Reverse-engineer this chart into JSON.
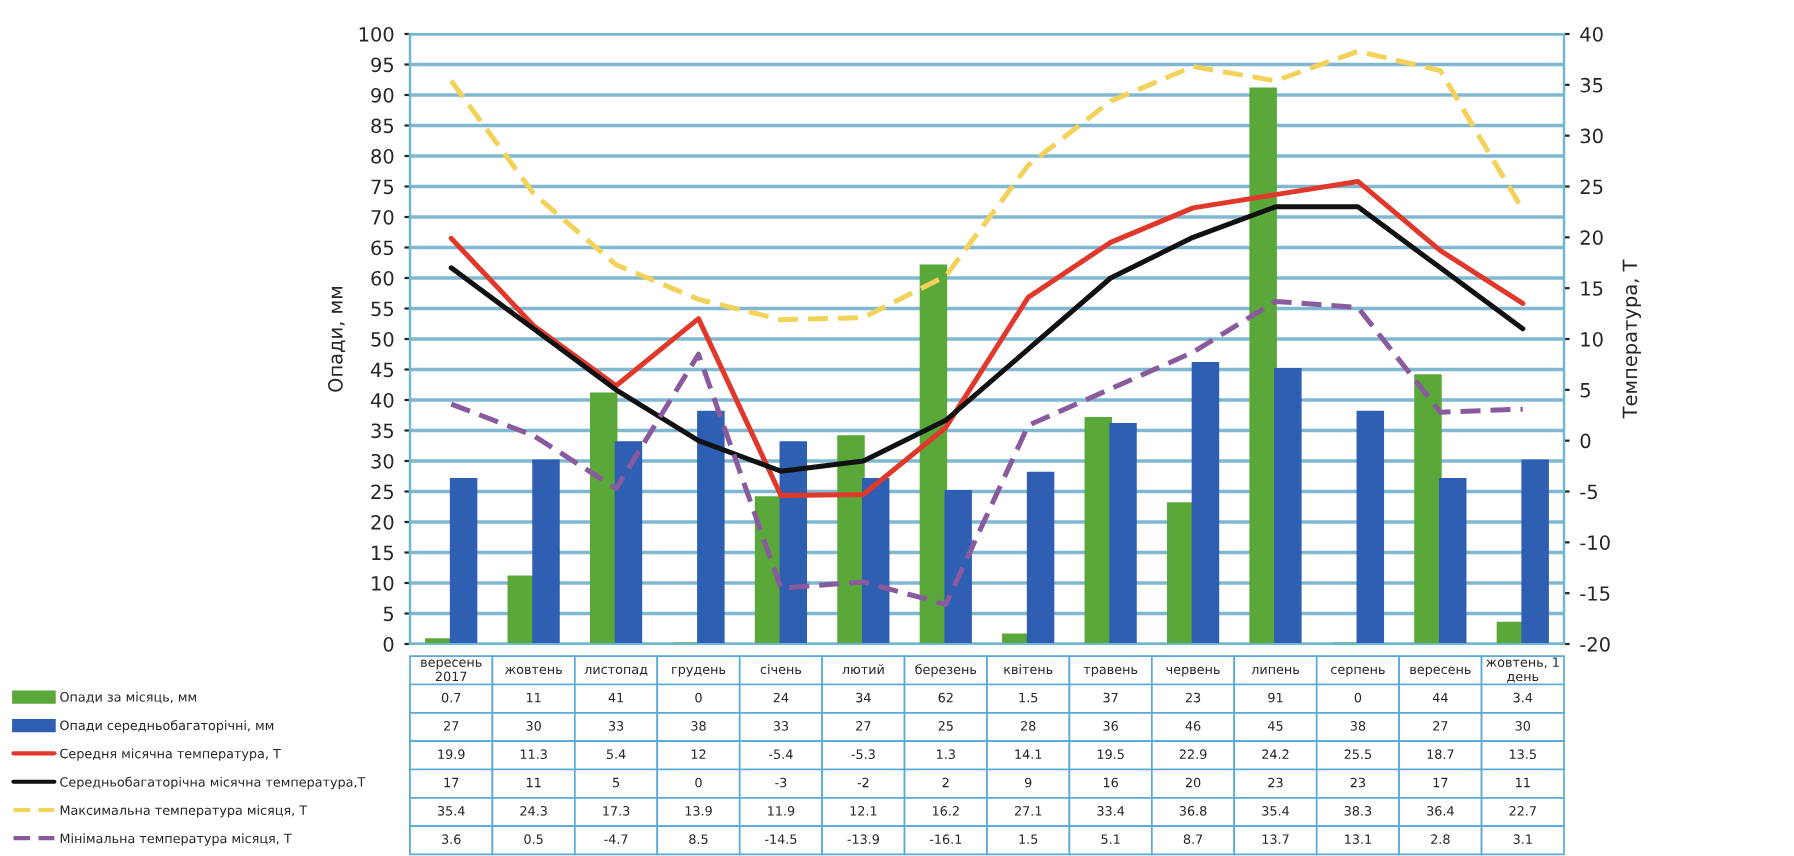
{
  "chart_data": {
    "type": "bar",
    "categories": [
      "вересень 2017",
      "жовтень",
      "листопад",
      "грудень",
      "січень",
      "лютий",
      "березень",
      "квітень",
      "травень",
      "червень",
      "липень",
      "серпень",
      "вересень",
      "жовтень, 1 день"
    ],
    "series": [
      {
        "name": "Опади за місяць, мм",
        "color": "#5aa83a",
        "values": [
          0.7,
          11,
          41,
          0,
          24,
          34,
          62,
          1.5,
          37,
          23,
          91,
          0,
          44,
          3.4
        ]
      },
      {
        "name": "Опади середньобагаторічні, мм",
        "color": "#2f5fb3",
        "values": [
          27,
          30,
          33,
          38,
          33,
          27,
          25,
          28,
          36,
          46,
          45,
          38,
          27,
          30
        ]
      },
      {
        "name": "Середня місячна температура, T",
        "type": "line",
        "axis": "y2",
        "color": "#e0392b",
        "line_style": "solid",
        "values": [
          19.9,
          11.3,
          5.4,
          12,
          -5.4,
          -5.3,
          1.3,
          14.1,
          19.5,
          22.9,
          24.2,
          25.5,
          18.7,
          13.5
        ]
      },
      {
        "name": "Середньобагаторічна місячна температура,T",
        "type": "line",
        "axis": "y2",
        "color": "#111111",
        "line_style": "solid",
        "values": [
          17,
          11,
          5,
          0,
          -3,
          -2,
          2,
          9,
          16,
          20,
          23,
          23,
          17,
          11
        ]
      },
      {
        "name": "Максимальна температура місяця, T",
        "type": "line",
        "axis": "y2",
        "color": "#f2d25a",
        "line_style": "dashed",
        "values": [
          35.4,
          24.3,
          17.3,
          13.9,
          11.9,
          12.1,
          16.2,
          27.1,
          33.4,
          36.8,
          35.4,
          38.3,
          36.4,
          22.7
        ]
      },
      {
        "name": "Мінімальна температура місяця, T",
        "type": "line",
        "axis": "y2",
        "color": "#8a5a9e",
        "line_style": "dashed",
        "values": [
          3.6,
          0.5,
          -4.7,
          8.5,
          -14.5,
          -13.9,
          -16.1,
          1.5,
          5.1,
          8.7,
          13.7,
          13.1,
          2.8,
          3.1
        ]
      }
    ],
    "ylabel": "Опади, мм",
    "y2label": "Температура, T",
    "ylim": [
      0,
      100
    ],
    "yticks": [
      0,
      5,
      10,
      15,
      20,
      25,
      30,
      35,
      40,
      45,
      50,
      55,
      60,
      65,
      70,
      75,
      80,
      85,
      90,
      95,
      100
    ],
    "y2lim": [
      -20,
      40
    ],
    "y2ticks": [
      -20,
      -15,
      -10,
      -5,
      0,
      5,
      10,
      15,
      20,
      25,
      30,
      35,
      40
    ],
    "grid": "y",
    "data_labels": true,
    "marker": "none",
    "legend": "bottom left"
  }
}
